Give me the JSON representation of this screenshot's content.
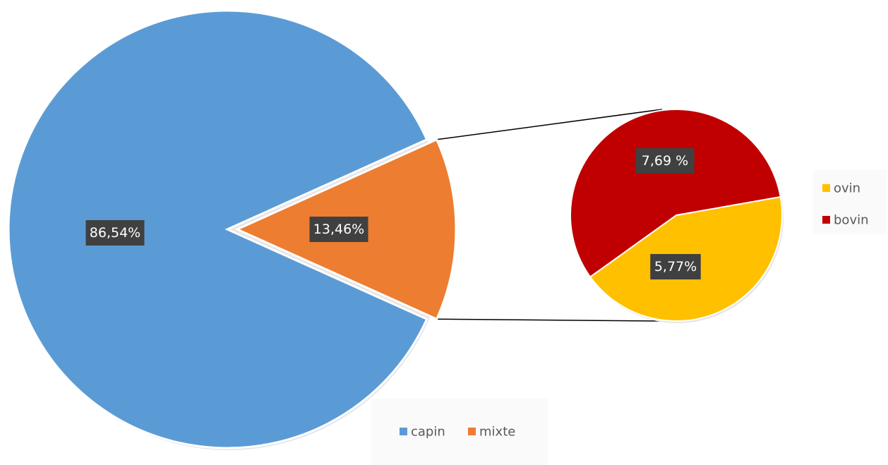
{
  "chart_data": {
    "type": "pie",
    "subtype": "pie-of-pie",
    "main": {
      "categories": [
        "capin",
        "mixte"
      ],
      "values": [
        86.54,
        13.46
      ],
      "labels": [
        "86,54%",
        "13,46%"
      ],
      "colors": [
        "#5B9BD5",
        "#ED7D31"
      ]
    },
    "secondary": {
      "categories": [
        "ovin",
        "bovin"
      ],
      "values": [
        5.77,
        7.69
      ],
      "labels": [
        "5,77%",
        "7,69 %"
      ],
      "colors": [
        "#FFC000",
        "#C00000"
      ]
    },
    "legend_main": [
      "capin",
      "mixte"
    ],
    "legend_secondary": [
      "ovin",
      "bovin"
    ],
    "legend_main_position": "bottom-center",
    "legend_secondary_position": "right",
    "label_background": "#404040",
    "label_text_color": "#ffffff",
    "connector_color": "#000000"
  }
}
